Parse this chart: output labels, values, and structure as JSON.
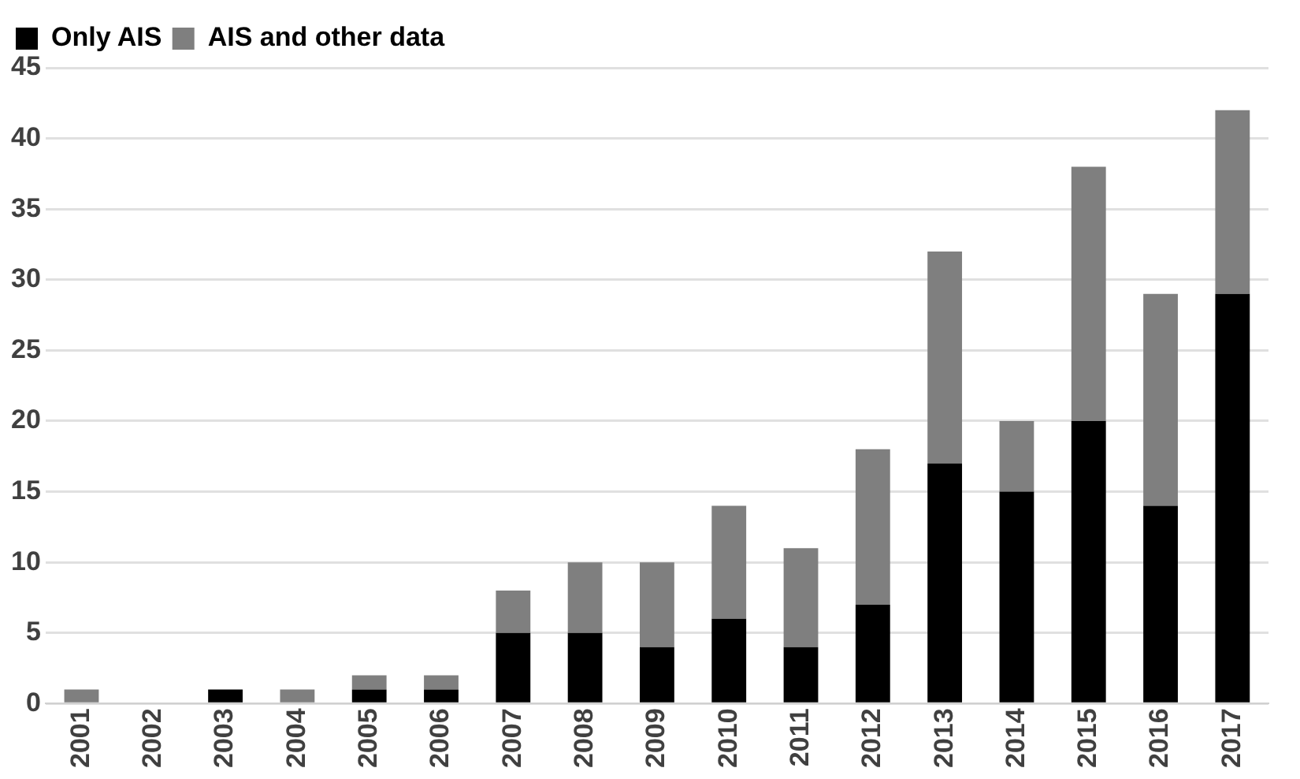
{
  "chart_data": {
    "type": "bar",
    "stacked": true,
    "categories": [
      "2001",
      "2002",
      "2003",
      "2004",
      "2005",
      "2006",
      "2007",
      "2008",
      "2009",
      "2010",
      "2011",
      "2012",
      "2013",
      "2014",
      "2015",
      "2016",
      "2017"
    ],
    "series": [
      {
        "name": "Only AIS",
        "color": "#000000",
        "values": [
          0,
          0,
          1,
          0,
          1,
          1,
          5,
          5,
          4,
          6,
          4,
          7,
          17,
          15,
          20,
          14,
          29
        ]
      },
      {
        "name": "AIS and other data",
        "color": "#7f7f7f",
        "values": [
          1,
          0,
          0,
          1,
          1,
          1,
          3,
          5,
          6,
          8,
          7,
          11,
          15,
          5,
          18,
          15,
          13
        ]
      }
    ],
    "ylim": [
      0,
      45
    ],
    "yticks": [
      0,
      5,
      10,
      15,
      20,
      25,
      30,
      35,
      40,
      45
    ],
    "grid": "y",
    "legend": "top left"
  }
}
